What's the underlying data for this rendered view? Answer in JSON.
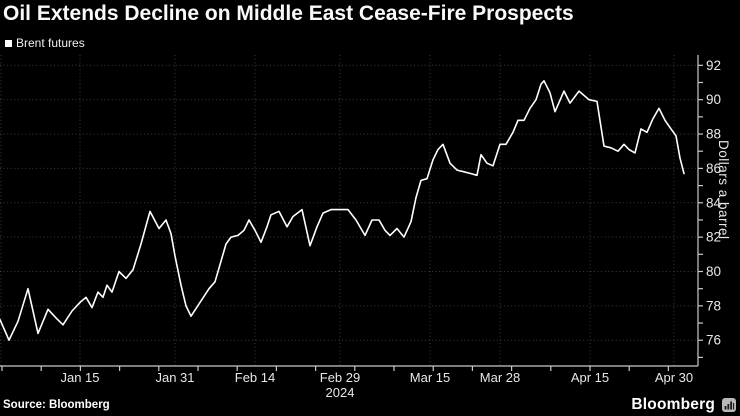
{
  "title": "Oil Extends Decline on Middle East Cease-Fire Prospects",
  "legend": {
    "label": "Brent futures",
    "marker_color": "#ffffff"
  },
  "source": "Source: Bloomberg",
  "brand": {
    "name": "Bloomberg",
    "icon": "bar-chart-logo"
  },
  "colors": {
    "background": "#000000",
    "line": "#ffffff",
    "grid": "#3d3d3d",
    "axis": "#c9c9c9",
    "tick_text": "#e8e8e8",
    "title_text": "#fafafa"
  },
  "chart_data": {
    "type": "line",
    "title": "Oil Extends Decline on Middle East Cease-Fire Prospects",
    "xlabel": "",
    "ylabel": "Dollars a barrel",
    "ylim": [
      74.5,
      92.6
    ],
    "yticks": [
      76,
      78,
      80,
      82,
      84,
      86,
      88,
      90,
      92
    ],
    "yticks_minor": [
      75,
      77,
      79,
      81,
      83,
      85,
      87,
      89,
      91
    ],
    "x_domain": [
      0,
      698
    ],
    "xticks": [
      {
        "label": "Jan 15",
        "pos": 80
      },
      {
        "label": "Jan 31",
        "pos": 175
      },
      {
        "label": "Feb 14",
        "pos": 255
      },
      {
        "label": "Feb 29",
        "pos": 340,
        "sub": "2024"
      },
      {
        "label": "Mar 15",
        "pos": 430
      },
      {
        "label": "Mar 28",
        "pos": 500
      },
      {
        "label": "Apr 15",
        "pos": 590
      },
      {
        "label": "Apr 30",
        "pos": 674
      }
    ],
    "x_gridlines": [
      1,
      80,
      175,
      255,
      340,
      430,
      500,
      590,
      674
    ],
    "grid": "dotted",
    "legend_position": "top-left",
    "series": [
      {
        "name": "Brent futures",
        "color": "#ffffff",
        "points": [
          [
            0,
            77.2
          ],
          [
            9,
            76.0
          ],
          [
            18,
            77.1
          ],
          [
            28,
            79.0
          ],
          [
            38,
            76.4
          ],
          [
            48,
            77.8
          ],
          [
            56,
            77.3
          ],
          [
            63,
            76.9
          ],
          [
            72,
            77.7
          ],
          [
            80,
            78.2
          ],
          [
            86,
            78.5
          ],
          [
            92,
            77.9
          ],
          [
            98,
            78.8
          ],
          [
            103,
            78.5
          ],
          [
            107,
            79.2
          ],
          [
            112,
            78.8
          ],
          [
            119,
            80.0
          ],
          [
            126,
            79.6
          ],
          [
            133,
            80.1
          ],
          [
            141,
            81.6
          ],
          [
            150,
            83.5
          ],
          [
            159,
            82.5
          ],
          [
            166,
            83.0
          ],
          [
            171,
            82.2
          ],
          [
            175,
            80.9
          ],
          [
            181,
            79.2
          ],
          [
            186,
            78.0
          ],
          [
            191,
            77.4
          ],
          [
            200,
            78.2
          ],
          [
            209,
            79.0
          ],
          [
            215,
            79.4
          ],
          [
            220,
            80.4
          ],
          [
            226,
            81.6
          ],
          [
            231,
            82.0
          ],
          [
            238,
            82.1
          ],
          [
            244,
            82.4
          ],
          [
            249,
            83.0
          ],
          [
            255,
            82.4
          ],
          [
            261,
            81.7
          ],
          [
            267,
            82.6
          ],
          [
            271,
            83.3
          ],
          [
            279,
            83.5
          ],
          [
            287,
            82.6
          ],
          [
            293,
            83.2
          ],
          [
            302,
            83.6
          ],
          [
            310,
            81.5
          ],
          [
            317,
            82.6
          ],
          [
            323,
            83.4
          ],
          [
            331,
            83.6
          ],
          [
            340,
            83.6
          ],
          [
            348,
            83.6
          ],
          [
            356,
            83.0
          ],
          [
            365,
            82.1
          ],
          [
            372,
            83.0
          ],
          [
            379,
            83.0
          ],
          [
            385,
            82.4
          ],
          [
            390,
            82.1
          ],
          [
            397,
            82.5
          ],
          [
            404,
            82.0
          ],
          [
            411,
            82.9
          ],
          [
            416,
            84.3
          ],
          [
            421,
            85.3
          ],
          [
            427,
            85.4
          ],
          [
            433,
            86.5
          ],
          [
            438,
            87.1
          ],
          [
            443,
            87.4
          ],
          [
            450,
            86.3
          ],
          [
            457,
            85.9
          ],
          [
            464,
            85.8
          ],
          [
            471,
            85.7
          ],
          [
            477,
            85.6
          ],
          [
            481,
            86.8
          ],
          [
            487,
            86.3
          ],
          [
            493,
            86.15
          ],
          [
            500,
            87.4
          ],
          [
            506,
            87.4
          ],
          [
            513,
            88.1
          ],
          [
            518,
            88.8
          ],
          [
            524,
            88.8
          ],
          [
            530,
            89.5
          ],
          [
            536,
            90.0
          ],
          [
            541,
            90.9
          ],
          [
            544,
            91.1
          ],
          [
            550,
            90.4
          ],
          [
            555,
            89.3
          ],
          [
            564,
            90.5
          ],
          [
            570,
            89.8
          ],
          [
            579,
            90.5
          ],
          [
            589,
            90.0
          ],
          [
            597,
            89.9
          ],
          [
            604,
            87.3
          ],
          [
            611,
            87.2
          ],
          [
            618,
            87.0
          ],
          [
            624,
            87.4
          ],
          [
            629,
            87.1
          ],
          [
            635,
            86.9
          ],
          [
            641,
            88.3
          ],
          [
            647,
            88.1
          ],
          [
            653,
            88.9
          ],
          [
            659,
            89.5
          ],
          [
            665,
            88.8
          ],
          [
            671,
            88.3
          ],
          [
            676,
            87.9
          ],
          [
            680,
            86.6
          ],
          [
            684,
            85.7
          ]
        ]
      }
    ]
  }
}
